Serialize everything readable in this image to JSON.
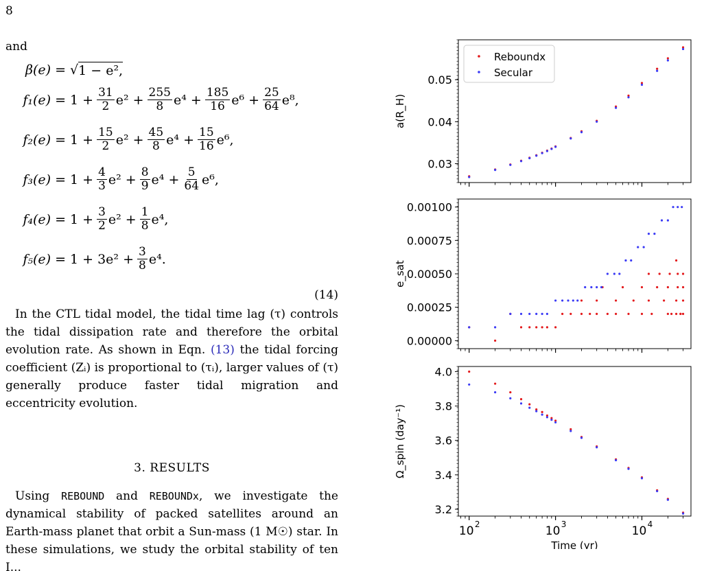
{
  "page_number": "8",
  "intro_word": "and",
  "equations": {
    "beta": {
      "lhs": "β(e) =",
      "rhs": "1 − e², "
    },
    "f1": {
      "lhs": "f₁(e) =",
      "terms": [
        {
          "pre": "1 +",
          "num": "31",
          "den": "2",
          "post": "e² +"
        },
        {
          "num": "255",
          "den": "8",
          "post": "e⁴ +"
        },
        {
          "num": "185",
          "den": "16",
          "post": "e⁶ +"
        },
        {
          "num": "25",
          "den": "64",
          "post": "e⁸,"
        }
      ]
    },
    "f2": {
      "lhs": "f₂(e) =",
      "terms": [
        {
          "pre": "1 +",
          "num": "15",
          "den": "2",
          "post": "e² +"
        },
        {
          "num": "45",
          "den": "8",
          "post": "e⁴ +"
        },
        {
          "num": "15",
          "den": "16",
          "post": "e⁶,"
        }
      ]
    },
    "f3": {
      "lhs": "f₃(e) =",
      "terms": [
        {
          "pre": "1 +",
          "num": "4",
          "den": "3",
          "post": "e² +"
        },
        {
          "num": "8",
          "den": "9",
          "post": "e⁴ +"
        },
        {
          "num": "5",
          "den": "64",
          "post": "e⁶,"
        }
      ]
    },
    "f4": {
      "lhs": "f₄(e) =",
      "terms": [
        {
          "pre": "1 +",
          "num": "3",
          "den": "2",
          "post": "e² +"
        },
        {
          "num": "1",
          "den": "8",
          "post": "e⁴,"
        }
      ]
    },
    "f5": {
      "lhs": "f₅(e) =",
      "terms": [
        {
          "pre": "1 + 3e² +",
          "num": "3",
          "den": "8",
          "post": "e⁴."
        }
      ]
    },
    "number": "(14)"
  },
  "paragraph1": {
    "text_a": "In the CTL tidal model, the tidal time lag (τ) controls the tidal dissipation rate and therefore the orbital evolution rate. As shown in Eqn. ",
    "ref": "(13)",
    "text_b": " the tidal forcing coefficient (Zᵢ) is proportional to (τᵢ), larger values of (τ) generally produce faster tidal migration and eccentricity evolution."
  },
  "section_heading": "3. RESULTS",
  "paragraph2": {
    "a": "Using ",
    "code1": "REBOUND",
    "b": " and ",
    "code2": "REBOUNDx",
    "c": ", we investigate the dynamical stability of packed satellites around an Earth-mass planet that orbit a Sun-mass (1 M☉) star. In these simulations, we study the orbital stability of ten I..."
  },
  "colors": {
    "reboundx": "#e31a1c",
    "secular": "#3b3bf5"
  },
  "chart_data": [
    {
      "type": "scatter",
      "panel": "top",
      "ylabel": "a(R_H)",
      "xscale": "log",
      "xlim": [
        75,
        37000
      ],
      "ylim": [
        0.0255,
        0.0595
      ],
      "yticks": [
        "0.03",
        "0.04",
        "0.05"
      ],
      "ytick_values": [
        0.03,
        0.04,
        0.05
      ],
      "legend": {
        "placement": "top-left",
        "entries": [
          "Reboundx",
          "Secular"
        ]
      },
      "series": [
        {
          "name": "Reboundx",
          "x": [
            100,
            200,
            300,
            400,
            500,
            600,
            700,
            800,
            900,
            1000,
            1500,
            2000,
            3000,
            5000,
            7000,
            10000,
            15000,
            20000,
            30000
          ],
          "y": [
            0.027,
            0.0286,
            0.0298,
            0.0307,
            0.0314,
            0.032,
            0.0326,
            0.0331,
            0.0336,
            0.0341,
            0.0361,
            0.0377,
            0.0402,
            0.0436,
            0.0462,
            0.0492,
            0.0526,
            0.0551,
            0.0577
          ]
        },
        {
          "name": "Secular",
          "x": [
            100,
            200,
            300,
            400,
            500,
            600,
            700,
            800,
            900,
            1000,
            1500,
            2000,
            3000,
            5000,
            7000,
            10000,
            15000,
            20000,
            30000
          ],
          "y": [
            0.0268,
            0.0285,
            0.0297,
            0.0306,
            0.0313,
            0.0319,
            0.0325,
            0.033,
            0.0335,
            0.034,
            0.036,
            0.0375,
            0.04,
            0.0433,
            0.0458,
            0.0488,
            0.0521,
            0.0546,
            0.0573
          ]
        }
      ]
    },
    {
      "type": "scatter",
      "panel": "middle",
      "ylabel": "e_sat",
      "xscale": "log",
      "xlim": [
        75,
        37000
      ],
      "ylim": [
        -6e-05,
        0.00106
      ],
      "yticks": [
        "0.00000",
        "0.00025",
        "0.00050",
        "0.00075",
        "0.00100"
      ],
      "ytick_values": [
        0.0,
        0.00025,
        0.0005,
        0.00075,
        0.001
      ],
      "series": [
        {
          "name": "Reboundx",
          "x": [
            100,
            200,
            300,
            400,
            500,
            600,
            700,
            800,
            1000,
            1200,
            1500,
            2000,
            2500,
            3000,
            4000,
            5000,
            7000,
            10000,
            13000,
            20000,
            22000,
            25000,
            28000,
            30000,
            2000,
            3000,
            5000,
            8000,
            12000,
            18000,
            25000,
            30000,
            3500,
            6000,
            10000,
            15000,
            20000,
            26000,
            30000,
            12000,
            16000,
            21000,
            26000,
            30000,
            25000,
            28000
          ],
          "y": [
            0.0001,
            0.0,
            0.0002,
            0.0001,
            0.0001,
            0.0001,
            0.0001,
            0.0001,
            0.0001,
            0.0002,
            0.0002,
            0.0002,
            0.0002,
            0.0002,
            0.0002,
            0.0002,
            0.0002,
            0.0002,
            0.0002,
            0.0002,
            0.0002,
            0.0002,
            0.0002,
            0.0002,
            0.0003,
            0.0003,
            0.0003,
            0.0003,
            0.0003,
            0.0003,
            0.0003,
            0.0003,
            0.0004,
            0.0004,
            0.0004,
            0.0004,
            0.0004,
            0.0004,
            0.0004,
            0.0005,
            0.0005,
            0.0005,
            0.0005,
            0.0005,
            0.0006,
            0.0002
          ]
        },
        {
          "name": "Secular",
          "x": [
            100,
            200,
            300,
            400,
            500,
            600,
            700,
            800,
            1000,
            1200,
            1400,
            1600,
            1800,
            2200,
            2600,
            3000,
            3400,
            4000,
            4800,
            5500,
            6500,
            7500,
            9000,
            10500,
            12000,
            14000,
            17000,
            20000,
            23000,
            26000,
            29000
          ],
          "y": [
            0.0001,
            0.0001,
            0.0002,
            0.0002,
            0.0002,
            0.0002,
            0.0002,
            0.0002,
            0.0003,
            0.0003,
            0.0003,
            0.0003,
            0.0003,
            0.0004,
            0.0004,
            0.0004,
            0.0004,
            0.0005,
            0.0005,
            0.0005,
            0.0006,
            0.0006,
            0.0007,
            0.0007,
            0.0008,
            0.0008,
            0.0009,
            0.0009,
            0.001,
            0.001,
            0.001
          ]
        }
      ]
    },
    {
      "type": "scatter",
      "panel": "bottom",
      "ylabel": "Ω_spin (day⁻¹)",
      "xlabel": "Time (yr)",
      "xscale": "log",
      "xlim": [
        75,
        37000
      ],
      "ylim": [
        3.16,
        4.03
      ],
      "yticks": [
        "3.2",
        "3.4",
        "3.6",
        "3.8",
        "4.0"
      ],
      "ytick_values": [
        3.2,
        3.4,
        3.6,
        3.8,
        4.0
      ],
      "xticks": [
        "10",
        "10",
        "10"
      ],
      "xtick_exponents": [
        "2",
        "3",
        "4"
      ],
      "xtick_values": [
        100,
        1000,
        10000
      ],
      "series": [
        {
          "name": "Reboundx",
          "x": [
            100,
            200,
            300,
            400,
            500,
            600,
            700,
            800,
            900,
            1000,
            1500,
            2000,
            3000,
            5000,
            7000,
            10000,
            15000,
            20000,
            30000
          ],
          "y": [
            4.0,
            3.93,
            3.88,
            3.84,
            3.81,
            3.78,
            3.765,
            3.745,
            3.73,
            3.715,
            3.665,
            3.62,
            3.565,
            3.49,
            3.44,
            3.385,
            3.31,
            3.26,
            3.18
          ]
        },
        {
          "name": "Secular",
          "x": [
            100,
            200,
            300,
            400,
            500,
            600,
            700,
            800,
            900,
            1000,
            1500,
            2000,
            3000,
            5000,
            7000,
            10000,
            15000,
            20000,
            30000
          ],
          "y": [
            3.925,
            3.88,
            3.845,
            3.815,
            3.79,
            3.77,
            3.75,
            3.735,
            3.72,
            3.705,
            3.655,
            3.615,
            3.56,
            3.485,
            3.435,
            3.38,
            3.305,
            3.255,
            3.175
          ]
        }
      ]
    }
  ]
}
